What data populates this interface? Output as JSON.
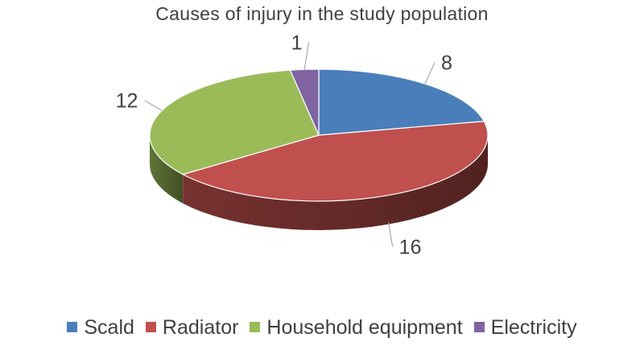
{
  "chart_data": {
    "type": "pie",
    "title": "Causes of injury in the study population",
    "categories": [
      "Scald",
      "Radiator",
      "Household equipment",
      "Electricity"
    ],
    "values": [
      8,
      16,
      12,
      1
    ],
    "colors": [
      "#4a7ebb",
      "#c0504d",
      "#9bbb59",
      "#8064a2"
    ],
    "data_labels": true,
    "legend": "bottom",
    "style": "3d"
  }
}
